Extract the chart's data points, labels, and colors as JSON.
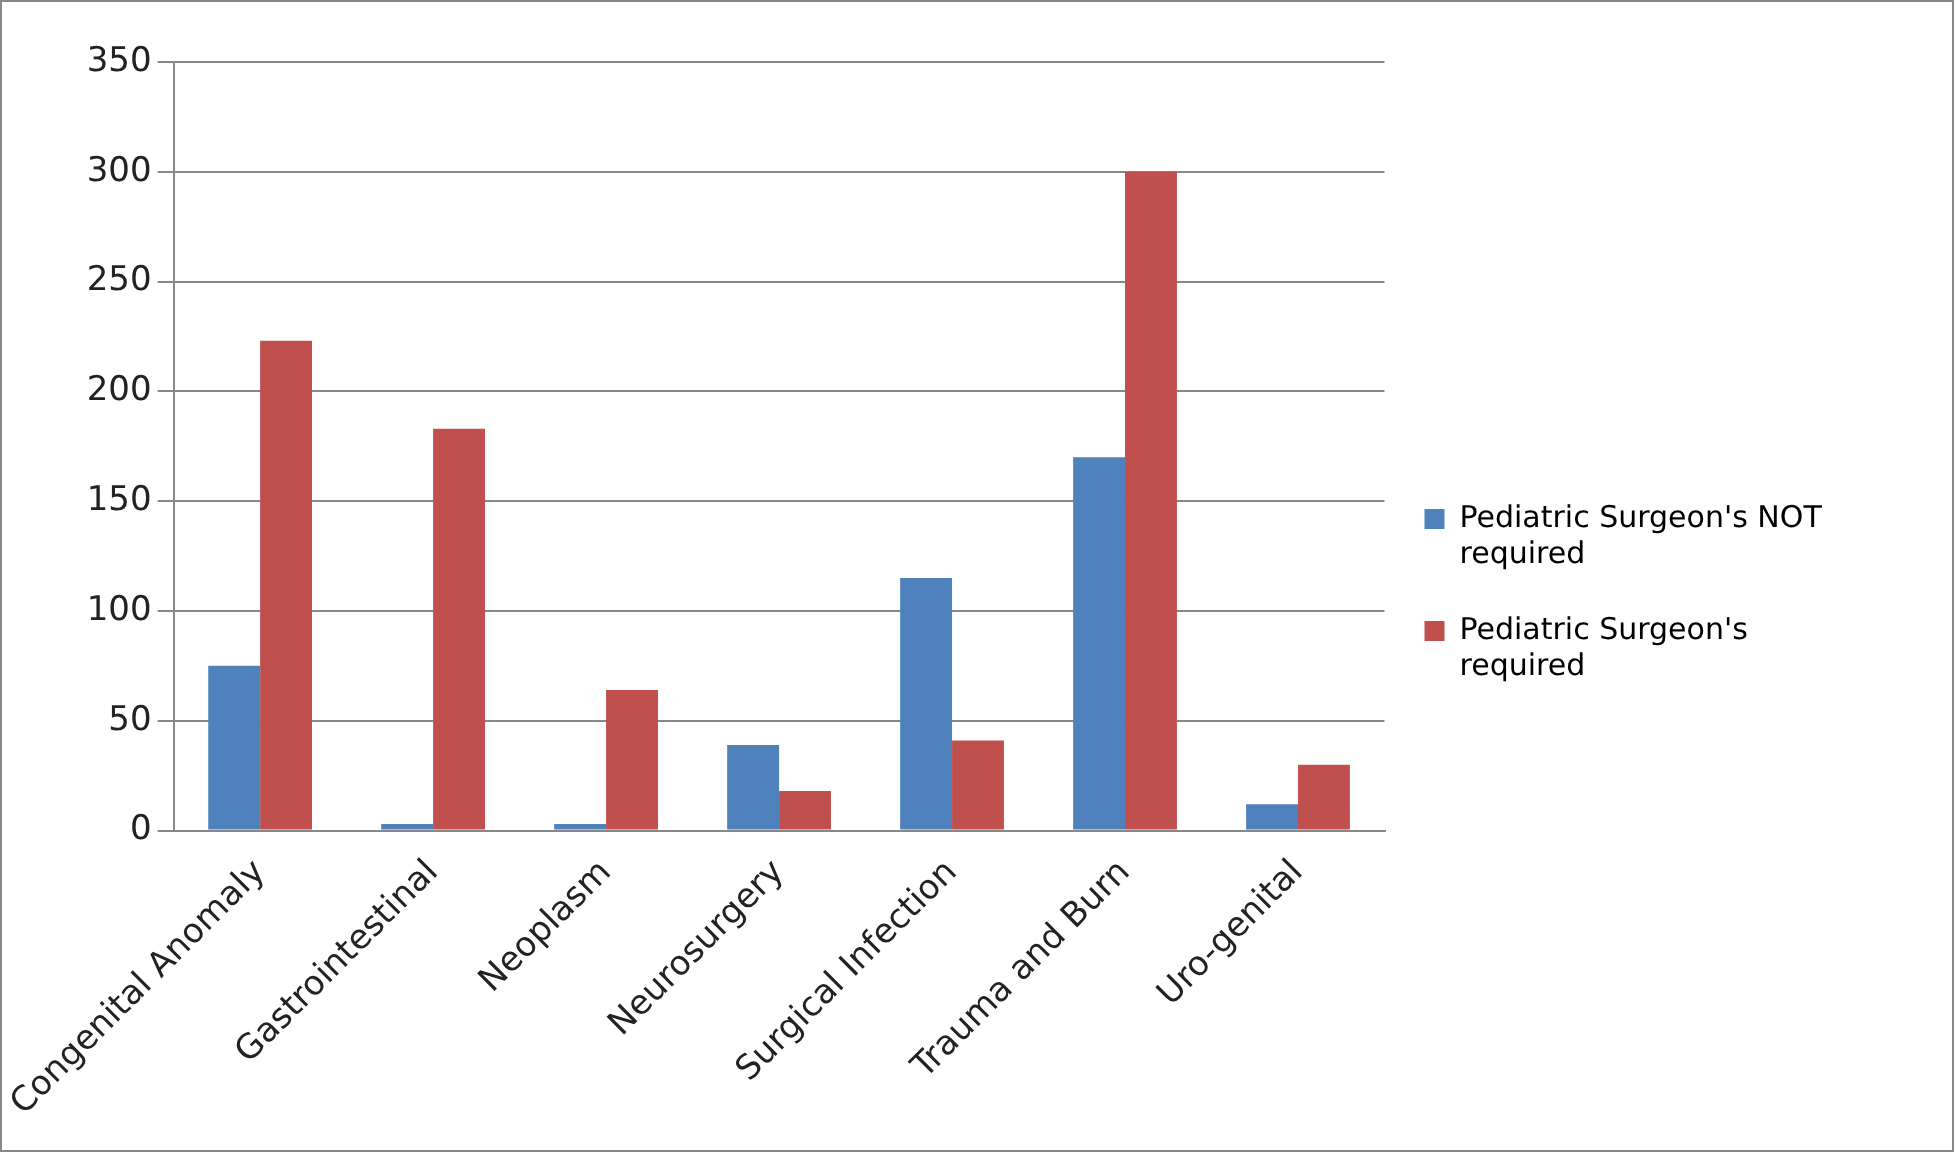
{
  "chart_data": {
    "type": "bar",
    "categories": [
      "Congenital Anomaly",
      "Gastrointestinal",
      "Neoplasm",
      "Neurosurgery",
      "Surgical Infection",
      "Trauma and Burn",
      "Uro-genital"
    ],
    "series": [
      {
        "name": "Pediatric Surgeon's NOT required",
        "color": "#4f81bd",
        "values": [
          75,
          3,
          3,
          39,
          115,
          170,
          12
        ]
      },
      {
        "name": "Pediatric Surgeon's required",
        "color": "#c0504d",
        "values": [
          223,
          183,
          64,
          18,
          41,
          300,
          30
        ]
      }
    ],
    "ylim": [
      0,
      350
    ],
    "yticks": [
      0,
      50,
      100,
      150,
      200,
      250,
      300,
      350
    ],
    "grid": "y",
    "legend": "right"
  }
}
